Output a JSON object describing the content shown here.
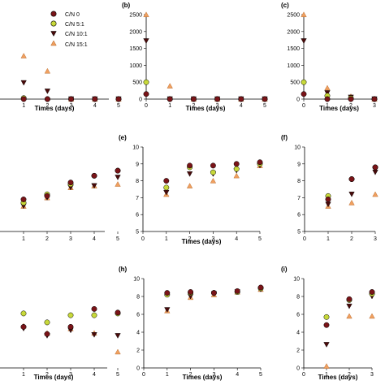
{
  "colors": {
    "cn0": "#7a1418",
    "cn5": "#c8d93a",
    "cn10": "#4a0a0a",
    "cn15": "#f0a060",
    "axis": "#000000"
  },
  "legend": {
    "entries": [
      "C/N 0",
      "C/N 5:1",
      "C/N 10:1",
      "C/N 15:1"
    ]
  },
  "chart_data": [
    {
      "type": "scatter",
      "panel_label": "",
      "xlabel": "Times (days)",
      "ylabel": "",
      "xlim": [
        0,
        5
      ],
      "ylim": [
        0,
        2500
      ],
      "x_ticks": [
        1,
        2,
        3,
        4,
        5
      ],
      "y_ticks": [],
      "series": [
        {
          "name": "C/N 0",
          "x": [
            1,
            2,
            3,
            4,
            5
          ],
          "y": [
            0,
            0,
            0,
            0,
            0
          ]
        },
        {
          "name": "C/N 5:1",
          "x": [
            1,
            2,
            3,
            4,
            5
          ],
          "y": [
            30,
            0,
            0,
            0,
            0
          ]
        },
        {
          "name": "C/N 10:1",
          "x": [
            1,
            2,
            3,
            4,
            5
          ],
          "y": [
            480,
            230,
            0,
            0,
            0
          ]
        },
        {
          "name": "C/N 15:1",
          "x": [
            1,
            2,
            3,
            4,
            5
          ],
          "y": [
            1280,
            830,
            0,
            0,
            0
          ]
        }
      ]
    },
    {
      "type": "scatter",
      "panel_label": "(b)",
      "xlabel": "Times (days)",
      "ylabel": "",
      "xlim": [
        0,
        5
      ],
      "ylim": [
        0,
        2500
      ],
      "x_ticks": [
        0,
        1,
        2,
        3,
        4,
        5
      ],
      "y_ticks": [
        0,
        500,
        1000,
        1500,
        2000,
        2500
      ],
      "series": [
        {
          "name": "C/N 0",
          "x": [
            0,
            1,
            2,
            3,
            4,
            5
          ],
          "y": [
            150,
            0,
            0,
            0,
            0,
            0
          ]
        },
        {
          "name": "C/N 5:1",
          "x": [
            0,
            1,
            2,
            3,
            4,
            5
          ],
          "y": [
            500,
            0,
            0,
            0,
            0,
            0
          ]
        },
        {
          "name": "C/N 10:1",
          "x": [
            0,
            1,
            2,
            3,
            4,
            5
          ],
          "y": [
            1720,
            0,
            0,
            0,
            0,
            0
          ]
        },
        {
          "name": "C/N 15:1",
          "x": [
            0,
            1,
            2,
            3,
            4,
            5
          ],
          "y": [
            2500,
            390,
            0,
            0,
            0,
            0
          ]
        }
      ]
    },
    {
      "type": "scatter",
      "panel_label": "(c)",
      "xlabel": "Times (days)",
      "ylabel": "",
      "xlim": [
        0,
        3
      ],
      "ylim": [
        0,
        2500
      ],
      "x_ticks": [
        0,
        1,
        2,
        3
      ],
      "y_ticks": [
        0,
        500,
        1000,
        1500,
        2000,
        2500
      ],
      "series": [
        {
          "name": "C/N 0",
          "x": [
            0,
            1,
            2,
            3
          ],
          "y": [
            150,
            0,
            0,
            0
          ]
        },
        {
          "name": "C/N 5:1",
          "x": [
            0,
            1,
            2,
            3
          ],
          "y": [
            500,
            100,
            30,
            0
          ]
        },
        {
          "name": "C/N 10:1",
          "x": [
            0,
            1,
            2,
            3
          ],
          "y": [
            1720,
            180,
            50,
            0
          ]
        },
        {
          "name": "C/N 15:1",
          "x": [
            0,
            1,
            2,
            3
          ],
          "y": [
            2500,
            330,
            80,
            0
          ]
        }
      ]
    },
    {
      "type": "scatter",
      "panel_label": "",
      "xlabel": "",
      "ylabel": "",
      "xlim": [
        0,
        5
      ],
      "ylim": [
        5,
        10
      ],
      "x_ticks": [
        1,
        2,
        3,
        4,
        5
      ],
      "y_ticks": [],
      "series": [
        {
          "name": "C/N 0",
          "x": [
            1,
            2,
            3,
            4,
            5
          ],
          "y": [
            6.9,
            7.1,
            7.9,
            8.3,
            8.6
          ]
        },
        {
          "name": "C/N 5:1",
          "x": [
            1,
            2,
            3,
            4,
            5
          ],
          "y": [
            6.7,
            7.2,
            7.8,
            8.3,
            8.6
          ]
        },
        {
          "name": "C/N 10:1",
          "x": [
            1,
            2,
            3,
            4,
            5
          ],
          "y": [
            6.5,
            7.0,
            7.6,
            7.7,
            8.2
          ]
        },
        {
          "name": "C/N 15:1",
          "x": [
            1,
            2,
            3,
            4,
            5
          ],
          "y": [
            6.5,
            7.0,
            7.6,
            7.7,
            7.8
          ]
        }
      ]
    },
    {
      "type": "scatter",
      "panel_label": "(e)",
      "xlabel": "Times (days)",
      "ylabel": "",
      "xlim": [
        0,
        5
      ],
      "ylim": [
        5,
        10
      ],
      "x_ticks": [
        0,
        1,
        2,
        3,
        4,
        5
      ],
      "y_ticks": [
        5,
        6,
        7,
        8,
        9,
        10
      ],
      "series": [
        {
          "name": "C/N 0",
          "x": [
            1,
            2,
            3,
            4,
            5
          ],
          "y": [
            8.0,
            8.9,
            8.9,
            9.0,
            9.1
          ]
        },
        {
          "name": "C/N 5:1",
          "x": [
            1,
            2,
            3,
            4,
            5
          ],
          "y": [
            7.6,
            8.8,
            8.5,
            8.7,
            9.0
          ]
        },
        {
          "name": "C/N 10:1",
          "x": [
            1,
            2,
            3,
            4,
            5
          ],
          "y": [
            7.3,
            8.4,
            8.4,
            8.6,
            8.9
          ]
        },
        {
          "name": "C/N 15:1",
          "x": [
            1,
            2,
            3,
            4,
            5
          ],
          "y": [
            7.2,
            7.7,
            8.0,
            8.3,
            8.9
          ]
        }
      ]
    },
    {
      "type": "scatter",
      "panel_label": "(f)",
      "xlabel": "",
      "ylabel": "",
      "xlim": [
        0,
        3
      ],
      "ylim": [
        5,
        10
      ],
      "x_ticks": [
        0,
        1,
        2,
        3
      ],
      "y_ticks": [
        5,
        6,
        7,
        8,
        9,
        10
      ],
      "series": [
        {
          "name": "C/N 0",
          "x": [
            1,
            2,
            3
          ],
          "y": [
            6.9,
            8.1,
            8.8
          ]
        },
        {
          "name": "C/N 5:1",
          "x": [
            1,
            2,
            3
          ],
          "y": [
            7.1,
            8.1,
            8.8
          ]
        },
        {
          "name": "C/N 10:1",
          "x": [
            1,
            2,
            3
          ],
          "y": [
            6.6,
            7.2,
            8.5
          ]
        },
        {
          "name": "C/N 15:1",
          "x": [
            1,
            2,
            3
          ],
          "y": [
            6.5,
            6.7,
            7.2
          ]
        }
      ]
    },
    {
      "type": "scatter",
      "panel_label": "",
      "xlabel": "Times (days)",
      "ylabel": "",
      "xlim": [
        0,
        5
      ],
      "ylim": [
        0,
        10
      ],
      "x_ticks": [
        1,
        2,
        3,
        4,
        5
      ],
      "y_ticks": [],
      "series": [
        {
          "name": "C/N 0",
          "x": [
            1,
            2,
            3,
            4,
            5
          ],
          "y": [
            4.6,
            3.8,
            4.6,
            6.6,
            6.2
          ]
        },
        {
          "name": "C/N 5:1",
          "x": [
            1,
            2,
            3,
            4,
            5
          ],
          "y": [
            6.1,
            5.1,
            5.9,
            5.9,
            6.1
          ]
        },
        {
          "name": "C/N 10:1",
          "x": [
            1,
            2,
            3,
            4,
            5
          ],
          "y": [
            4.4,
            3.6,
            4.2,
            3.7,
            3.6
          ]
        },
        {
          "name": "C/N 15:1",
          "x": [
            1,
            2,
            3,
            4,
            5
          ],
          "y": [
            4.7,
            3.9,
            4.4,
            3.9,
            1.8
          ]
        }
      ]
    },
    {
      "type": "scatter",
      "panel_label": "(h)",
      "xlabel": "Times (days)",
      "ylabel": "",
      "xlim": [
        0,
        5
      ],
      "ylim": [
        0,
        10
      ],
      "x_ticks": [
        0,
        1,
        2,
        3,
        4,
        5
      ],
      "y_ticks": [
        0,
        2,
        4,
        6,
        8,
        10
      ],
      "series": [
        {
          "name": "C/N 0",
          "x": [
            1,
            2,
            3,
            4,
            5
          ],
          "y": [
            8.4,
            8.5,
            8.4,
            8.6,
            9.0
          ]
        },
        {
          "name": "C/N 5:1",
          "x": [
            1,
            2,
            3,
            4,
            5
          ],
          "y": [
            8.2,
            8.4,
            8.4,
            8.5,
            8.9
          ]
        },
        {
          "name": "C/N 10:1",
          "x": [
            1,
            2,
            3,
            4,
            5
          ],
          "y": [
            6.5,
            8.0,
            8.3,
            8.5,
            8.8
          ]
        },
        {
          "name": "C/N 15:1",
          "x": [
            1,
            2,
            3,
            4,
            5
          ],
          "y": [
            6.4,
            7.9,
            8.2,
            8.5,
            8.8
          ]
        }
      ]
    },
    {
      "type": "scatter",
      "panel_label": "(i)",
      "xlabel": "Times (days)",
      "ylabel": "",
      "xlim": [
        0,
        3
      ],
      "ylim": [
        0,
        10
      ],
      "x_ticks": [
        0,
        1,
        2,
        3
      ],
      "y_ticks": [
        0,
        2,
        4,
        6,
        8,
        10
      ],
      "series": [
        {
          "name": "C/N 0",
          "x": [
            1,
            2,
            3
          ],
          "y": [
            4.8,
            7.7,
            8.5
          ]
        },
        {
          "name": "C/N 5:1",
          "x": [
            1,
            2,
            3
          ],
          "y": [
            5.7,
            7.6,
            8.3
          ]
        },
        {
          "name": "C/N 10:1",
          "x": [
            1,
            2,
            3
          ],
          "y": [
            2.6,
            6.9,
            8.0
          ]
        },
        {
          "name": "C/N 15:1",
          "x": [
            1,
            2,
            3
          ],
          "y": [
            0.2,
            5.8,
            5.8
          ]
        }
      ]
    }
  ]
}
